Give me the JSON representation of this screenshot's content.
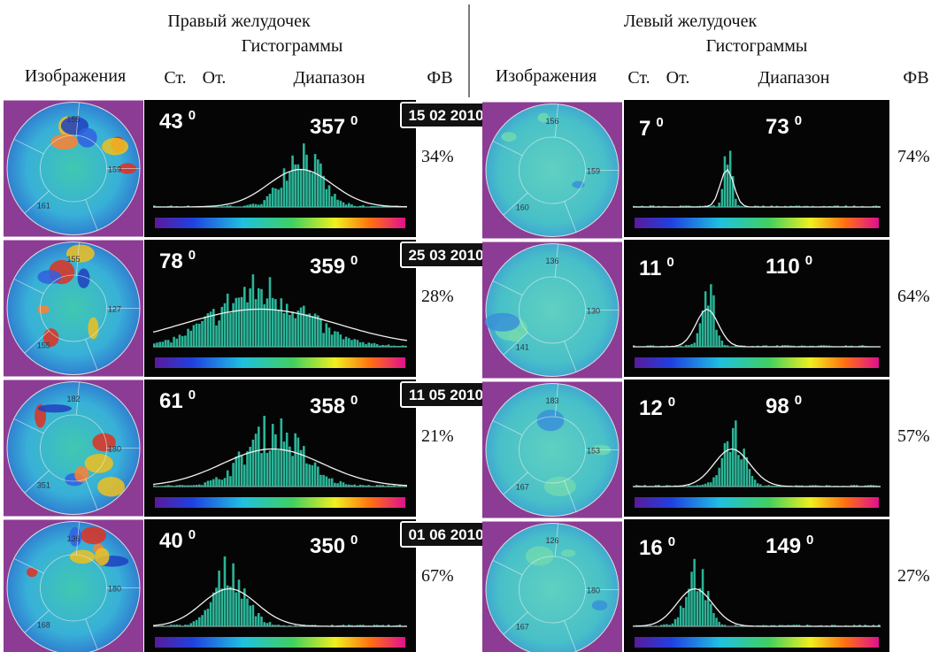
{
  "header": {
    "right_ventricle": "Правый желудочек",
    "left_ventricle": "Левый желудочек",
    "histograms_right": "Гистограммы",
    "histograms_left": "Гистограммы",
    "columns_right": [
      "Изображения",
      "Ст.",
      "От.",
      "Диапазон",
      "ФВ"
    ],
    "columns_left": [
      "Изображения",
      "Ст.",
      "От.",
      "Диапазон",
      "ФВ"
    ],
    "degree_mark": "0"
  },
  "rows": [
    {
      "date": "15 02 2010",
      "right": {
        "from": "43",
        "range": "357",
        "ef": "34%",
        "map_labels": [
          "155",
          "159",
          "161"
        ]
      },
      "left": {
        "from": "7",
        "range": "73",
        "ef": "74%",
        "map_labels": [
          "156",
          "159",
          "160"
        ]
      }
    },
    {
      "date": "25 03 2010",
      "right": {
        "from": "78",
        "range": "359",
        "ef": "28%",
        "map_labels": [
          "155",
          "127",
          "155"
        ]
      },
      "left": {
        "from": "11",
        "range": "110",
        "ef": "64%",
        "map_labels": [
          "136",
          "130",
          "141"
        ]
      }
    },
    {
      "date": "11 05 2010",
      "right": {
        "from": "61",
        "range": "358",
        "ef": "21%",
        "map_labels": [
          "182",
          "180",
          "351"
        ]
      },
      "left": {
        "from": "12",
        "range": "98",
        "ef": "57%",
        "map_labels": [
          "183",
          "153",
          "167"
        ]
      }
    },
    {
      "date": "01 06 2010",
      "right": {
        "from": "40",
        "range": "350",
        "ef": "67%",
        "map_labels": [
          "136",
          "180",
          "168"
        ]
      },
      "left": {
        "from": "16",
        "range": "149",
        "ef": "27%",
        "map_labels": [
          "126",
          "180",
          "167"
        ]
      }
    }
  ]
}
